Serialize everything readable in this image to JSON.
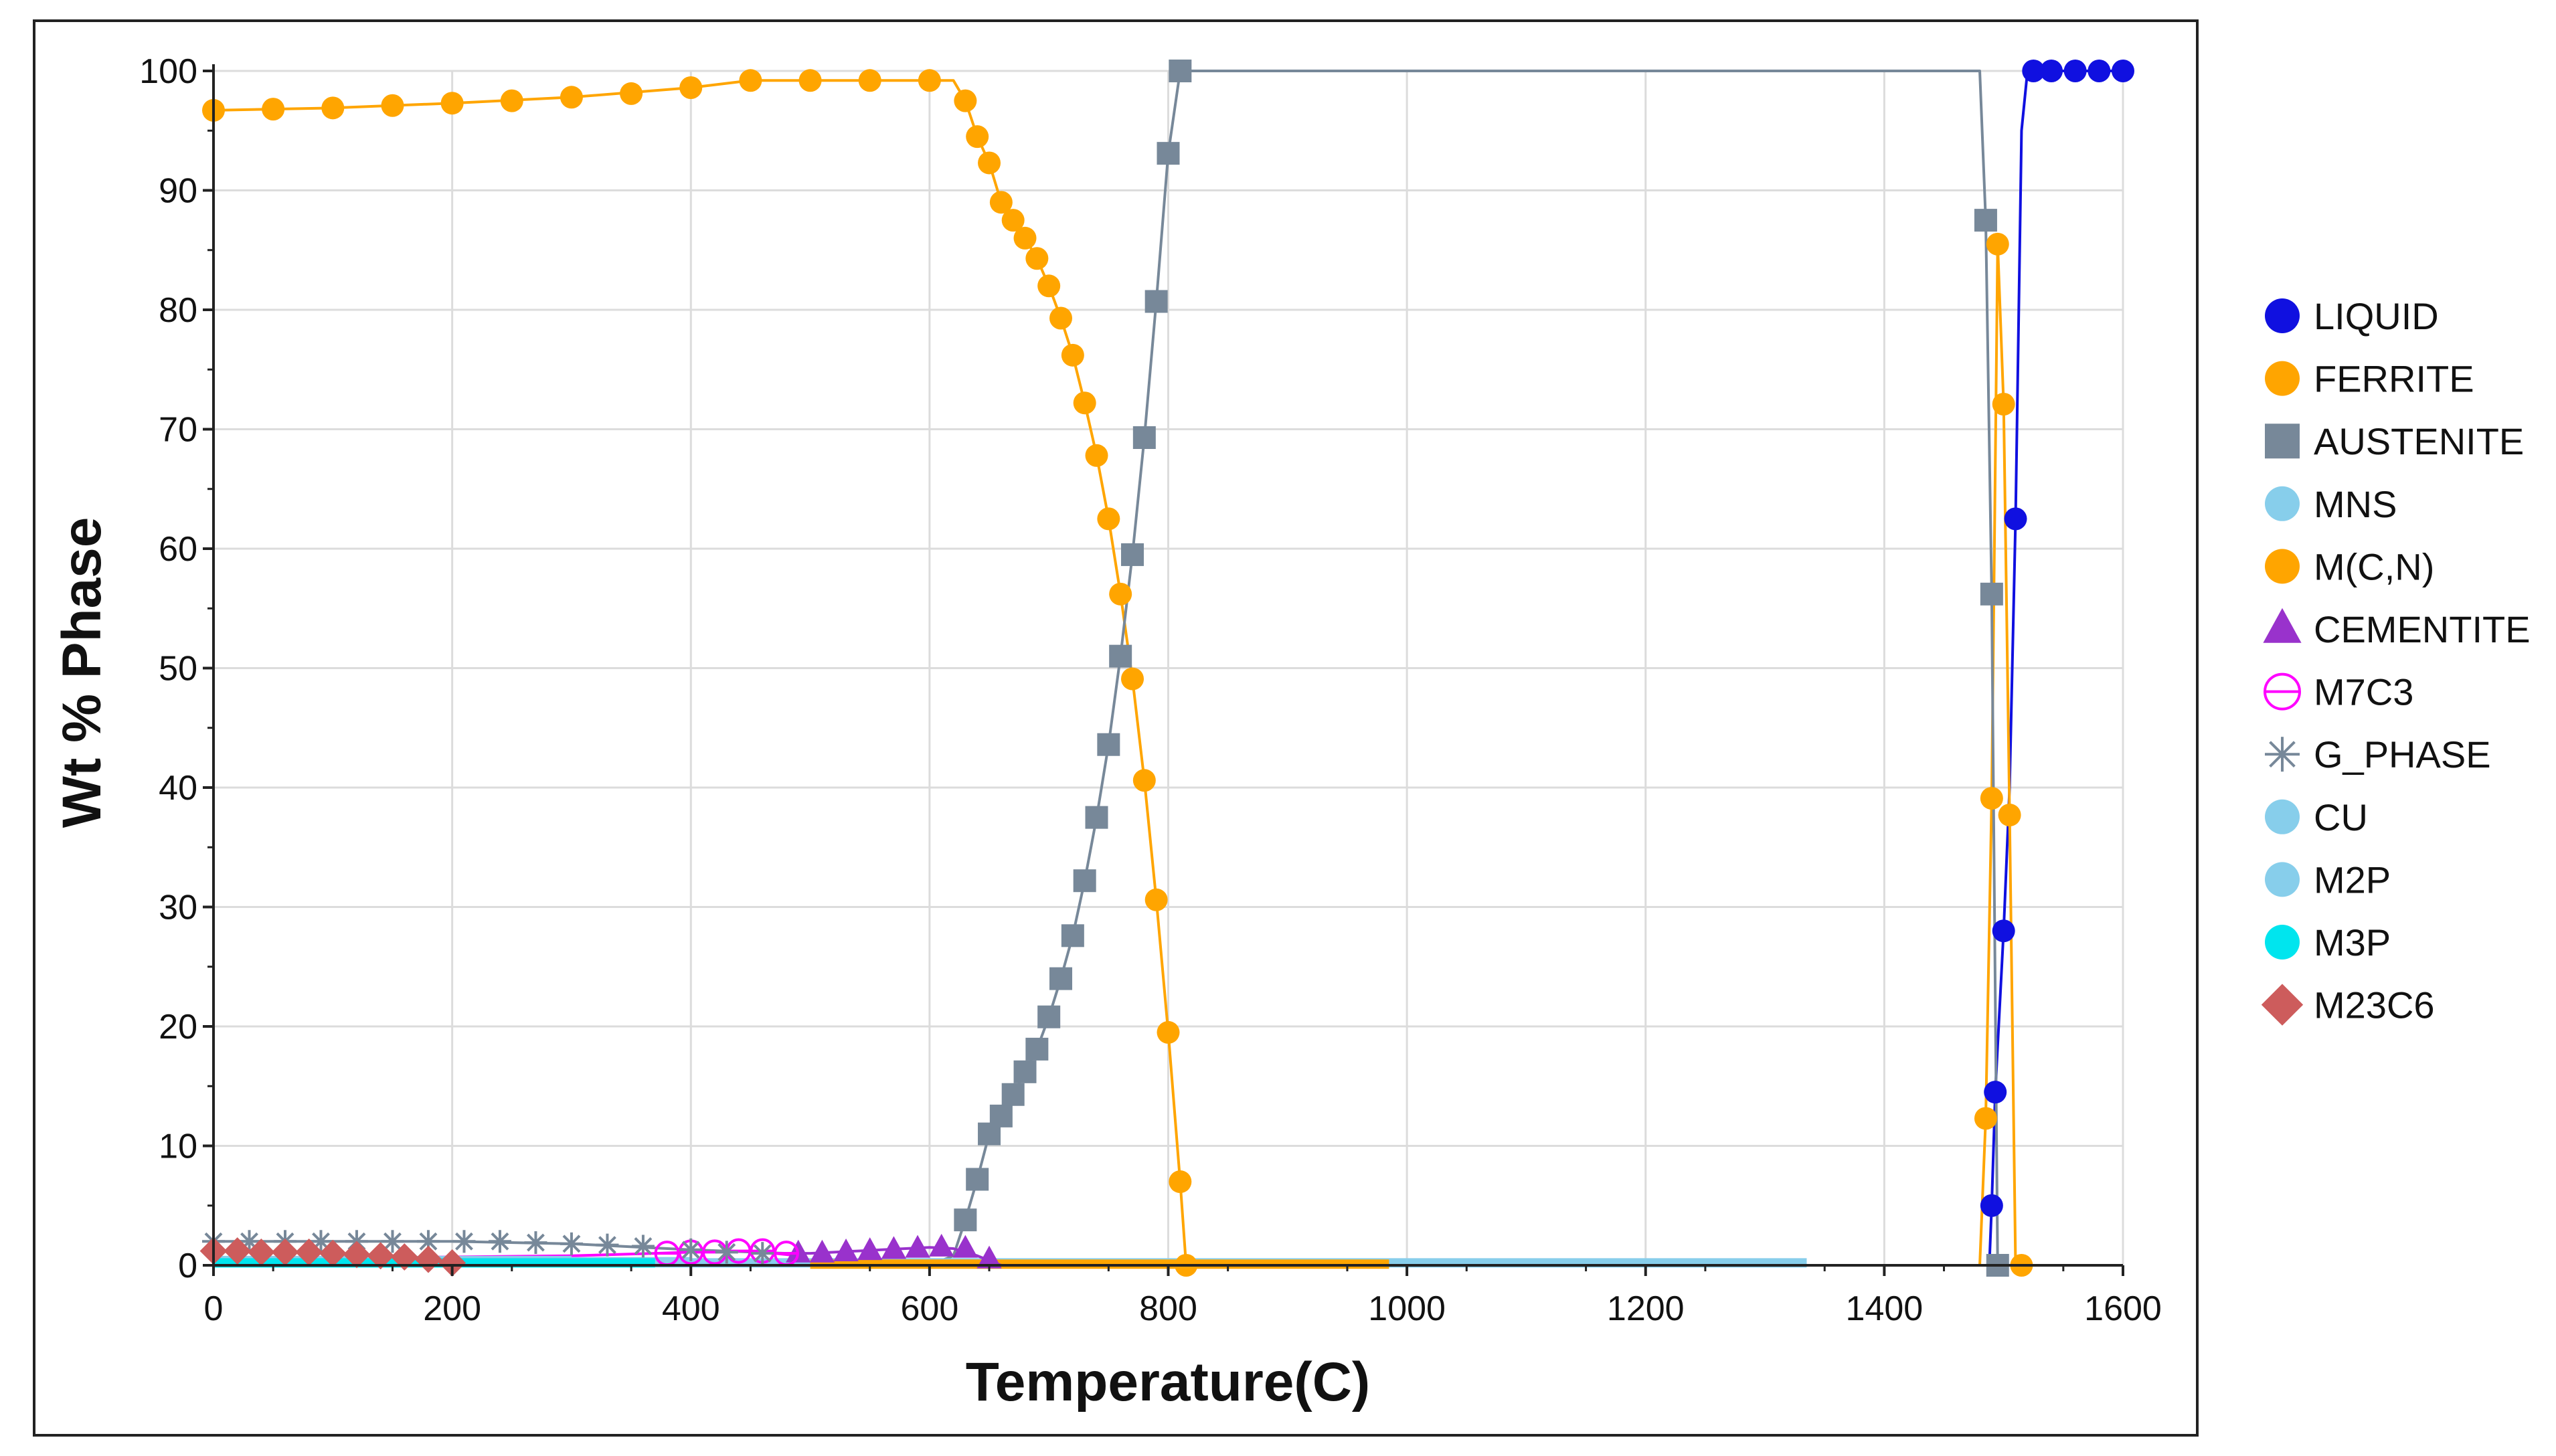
{
  "chart_data": {
    "type": "scatter",
    "xlabel": "Temperature(C)",
    "ylabel": "Wt % Phase",
    "xlim": [
      0,
      1600
    ],
    "ylim": [
      0,
      100
    ],
    "x_ticks": [
      "0",
      "200",
      "400",
      "600",
      "800",
      "1000",
      "1200",
      "1400",
      "1600"
    ],
    "y_ticks": [
      "0",
      "10",
      "20",
      "30",
      "40",
      "50",
      "60",
      "70",
      "80",
      "90",
      "100"
    ],
    "grid": true,
    "legend_position": "right",
    "series": [
      {
        "name": "LIQUID",
        "color": "#1010e0",
        "marker": "circle",
        "x": [
          1488,
          1490,
          1493,
          1500,
          1505,
          1510,
          1515,
          1520,
          1525,
          1540,
          1560,
          1580,
          1600
        ],
        "y": [
          0,
          5,
          14.5,
          28,
          40,
          62.5,
          95,
          100,
          100,
          100,
          100,
          100,
          100
        ],
        "markers": [
          [
            1490,
            5
          ],
          [
            1493,
            14.5
          ],
          [
            1500,
            28
          ],
          [
            1510,
            62.5
          ],
          [
            1525,
            100
          ],
          [
            1540,
            100
          ],
          [
            1560,
            100
          ],
          [
            1580,
            100
          ],
          [
            1600,
            100
          ]
        ]
      },
      {
        "name": "FERRITE",
        "color": "#ffa500",
        "marker": "circle",
        "x": [
          0,
          100,
          200,
          300,
          400,
          450,
          500,
          550,
          600,
          620,
          630,
          640,
          650,
          660,
          670,
          680,
          690,
          700,
          710,
          720,
          730,
          740,
          750,
          760,
          770,
          780,
          790,
          800,
          810,
          815,
          1480,
          1485,
          1490,
          1495,
          1500,
          1505,
          1510,
          1515
        ],
        "y": [
          96.7,
          96.9,
          97.3,
          97.8,
          98.6,
          99.2,
          99.2,
          99.2,
          99.2,
          99.2,
          97.5,
          94.5,
          92.3,
          89,
          87.5,
          86,
          84.3,
          82,
          79.3,
          76.2,
          72.2,
          67.8,
          62.5,
          56.2,
          49.1,
          40.6,
          30.6,
          19.5,
          7,
          0,
          0,
          12.3,
          39.1,
          85.5,
          72.1,
          37.7,
          0,
          0
        ],
        "markers": [
          [
            0,
            96.7
          ],
          [
            50,
            96.8
          ],
          [
            100,
            96.9
          ],
          [
            150,
            97.1
          ],
          [
            200,
            97.3
          ],
          [
            250,
            97.5
          ],
          [
            300,
            97.8
          ],
          [
            350,
            98.1
          ],
          [
            400,
            98.6
          ],
          [
            450,
            99.2
          ],
          [
            500,
            99.2
          ],
          [
            550,
            99.2
          ],
          [
            600,
            99.2
          ],
          [
            630,
            97.5
          ],
          [
            640,
            94.5
          ],
          [
            650,
            92.3
          ],
          [
            660,
            89
          ],
          [
            670,
            87.5
          ],
          [
            680,
            86
          ],
          [
            690,
            84.3
          ],
          [
            700,
            82
          ],
          [
            710,
            79.3
          ],
          [
            720,
            76.2
          ],
          [
            730,
            72.2
          ],
          [
            740,
            67.8
          ],
          [
            750,
            62.5
          ],
          [
            760,
            56.2
          ],
          [
            770,
            49.1
          ],
          [
            780,
            40.6
          ],
          [
            790,
            30.6
          ],
          [
            800,
            19.5
          ],
          [
            810,
            7
          ],
          [
            815,
            0
          ],
          [
            1485,
            12.3
          ],
          [
            1490,
            39.1
          ],
          [
            1495,
            85.5
          ],
          [
            1500,
            72.1
          ],
          [
            1505,
            37.7
          ],
          [
            1515,
            0
          ]
        ]
      },
      {
        "name": "AUSTENITE",
        "color": "#778899",
        "marker": "square",
        "x": [
          600,
          620,
          630,
          640,
          650,
          660,
          670,
          680,
          690,
          700,
          710,
          720,
          730,
          740,
          750,
          760,
          770,
          780,
          790,
          800,
          810,
          820,
          900,
          1000,
          1100,
          1200,
          1300,
          1400,
          1480,
          1485,
          1490,
          1495,
          1500
        ],
        "y": [
          0,
          0.8,
          3.8,
          7.2,
          11,
          12.5,
          14.3,
          16.2,
          18.1,
          20.8,
          24,
          27.6,
          32.2,
          37.5,
          43.6,
          51,
          59.5,
          69.3,
          80.7,
          93.1,
          100,
          100,
          100,
          100,
          100,
          100,
          100,
          100,
          100,
          87.5,
          56.2,
          0,
          0
        ],
        "markers": [
          [
            630,
            3.8
          ],
          [
            640,
            7.2
          ],
          [
            650,
            11
          ],
          [
            660,
            12.5
          ],
          [
            670,
            14.3
          ],
          [
            680,
            16.2
          ],
          [
            690,
            18.1
          ],
          [
            700,
            20.8
          ],
          [
            710,
            24
          ],
          [
            720,
            27.6
          ],
          [
            730,
            32.2
          ],
          [
            740,
            37.5
          ],
          [
            750,
            43.6
          ],
          [
            760,
            51
          ],
          [
            770,
            59.5
          ],
          [
            780,
            69.3
          ],
          [
            790,
            80.7
          ],
          [
            800,
            93.1
          ],
          [
            810,
            100
          ],
          [
            1485,
            87.5
          ],
          [
            1490,
            56.2
          ],
          [
            1495,
            0
          ]
        ]
      },
      {
        "name": "MNS",
        "color": "#87ceeb",
        "marker": "circle",
        "x": [
          0,
          200,
          400,
          600,
          800,
          1000,
          1200,
          1335
        ],
        "y": [
          0.2,
          0.2,
          0.2,
          0.2,
          0.2,
          0.2,
          0.2,
          0.2
        ],
        "markers": []
      },
      {
        "name": "M(C,N)",
        "color": "#ffa500",
        "marker": "circle",
        "x": [
          500,
          700,
          985
        ],
        "y": [
          0.1,
          0.1,
          0.1
        ],
        "markers": []
      },
      {
        "name": "CEMENTITE",
        "color": "#9932cc",
        "marker": "triangle",
        "x": [
          480,
          500,
          520,
          540,
          560,
          580,
          600,
          620,
          640,
          660
        ],
        "y": [
          1,
          1,
          1.1,
          1.2,
          1.3,
          1.4,
          1.5,
          1.4,
          0.8,
          0
        ],
        "markers": [
          [
            490,
            1
          ],
          [
            510,
            1
          ],
          [
            530,
            1.1
          ],
          [
            550,
            1.2
          ],
          [
            570,
            1.3
          ],
          [
            590,
            1.4
          ],
          [
            610,
            1.5
          ],
          [
            630,
            1.4
          ],
          [
            650,
            0.5
          ]
        ]
      },
      {
        "name": "M7C3",
        "color": "#ff00ff",
        "marker": "ring",
        "x": [
          0,
          100,
          200,
          300,
          370,
          400,
          450,
          490
        ],
        "y": [
          0.5,
          0.6,
          0.7,
          0.8,
          1,
          1.1,
          1.2,
          0.8
        ],
        "markers": [
          [
            380,
            1
          ],
          [
            400,
            1.1
          ],
          [
            420,
            1.1
          ],
          [
            440,
            1.2
          ],
          [
            460,
            1.2
          ],
          [
            480,
            1
          ]
        ]
      },
      {
        "name": "G_PHASE",
        "color": "#778899",
        "marker": "star",
        "x": [
          0,
          100,
          200,
          300,
          400,
          480
        ],
        "y": [
          2,
          2,
          2,
          1.8,
          1.3,
          1
        ],
        "markers": [
          [
            0,
            2
          ],
          [
            30,
            2
          ],
          [
            60,
            2
          ],
          [
            90,
            2
          ],
          [
            120,
            2
          ],
          [
            150,
            2
          ],
          [
            180,
            2
          ],
          [
            210,
            2
          ],
          [
            240,
            2
          ],
          [
            270,
            1.9
          ],
          [
            300,
            1.8
          ],
          [
            330,
            1.7
          ],
          [
            360,
            1.6
          ],
          [
            400,
            1.3
          ],
          [
            430,
            1.1
          ],
          [
            460,
            1
          ]
        ]
      },
      {
        "name": "CU",
        "color": "#87ceeb",
        "marker": "circle",
        "x": [
          0,
          200,
          400
        ],
        "y": [
          0.3,
          0.3,
          0.3
        ],
        "markers": []
      },
      {
        "name": "M2P",
        "color": "#87ceeb",
        "marker": "circle",
        "x": [
          0,
          300
        ],
        "y": [
          0.4,
          0.4
        ],
        "markers": []
      },
      {
        "name": "M3P",
        "color": "#00e5ee",
        "marker": "circle",
        "x": [
          0,
          100,
          200,
          300,
          370
        ],
        "y": [
          0.2,
          0.2,
          0.2,
          0.2,
          0.2
        ],
        "markers": []
      },
      {
        "name": "M23C6",
        "color": "#cd5c5c",
        "marker": "diamond",
        "x": [
          0,
          50,
          100,
          150,
          180,
          200
        ],
        "y": [
          1.2,
          1.1,
          1,
          0.8,
          0.5,
          0.2
        ],
        "markers": [
          [
            0,
            1.2
          ],
          [
            20,
            1.2
          ],
          [
            40,
            1.1
          ],
          [
            60,
            1.1
          ],
          [
            80,
            1.1
          ],
          [
            100,
            1
          ],
          [
            120,
            0.9
          ],
          [
            140,
            0.8
          ],
          [
            160,
            0.7
          ],
          [
            180,
            0.5
          ],
          [
            200,
            0.2
          ]
        ]
      }
    ]
  }
}
